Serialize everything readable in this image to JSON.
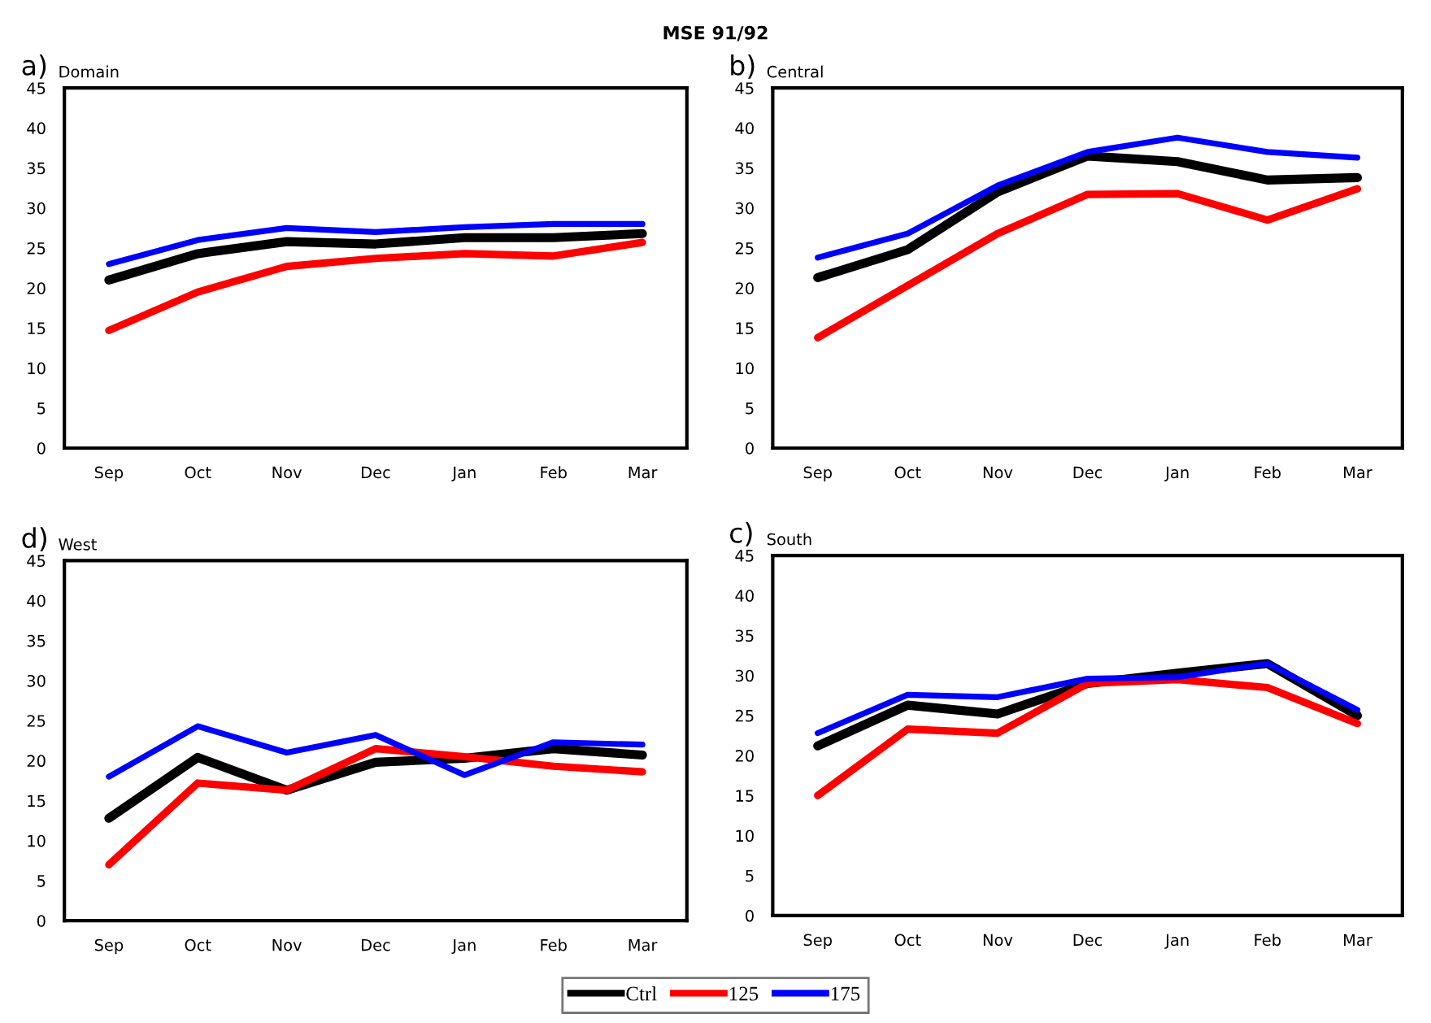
{
  "chart_data": [
    {
      "type": "line",
      "title": "a)",
      "subtitle": "Domain",
      "annotations": [
        "MSE 91/92"
      ],
      "categories": [
        "Sep",
        "Oct",
        "Nov",
        "Dec",
        "Jan",
        "Feb",
        "Mar"
      ],
      "ylim": [
        0,
        45
      ],
      "yticks": [
        0,
        5,
        10,
        15,
        20,
        25,
        30,
        35,
        40,
        45
      ],
      "legend": "bottom",
      "series": [
        {
          "name": "Ctrl",
          "color": "#000000",
          "values": [
            21,
            24.3,
            25.8,
            25.5,
            26.3,
            26.3,
            26.8
          ]
        },
        {
          "name": "125",
          "color": "#ff0000",
          "values": [
            14.7,
            19.5,
            22.7,
            23.7,
            24.3,
            24,
            25.7
          ]
        },
        {
          "name": "175",
          "color": "#0000ff",
          "values": [
            23,
            26,
            27.5,
            27,
            27.6,
            28,
            28
          ]
        }
      ]
    },
    {
      "type": "line",
      "title": "b)",
      "subtitle": "Central",
      "categories": [
        "Sep",
        "Oct",
        "Nov",
        "Dec",
        "Jan",
        "Feb",
        "Mar"
      ],
      "ylim": [
        0,
        45
      ],
      "yticks": [
        0,
        5,
        10,
        15,
        20,
        25,
        30,
        35,
        40,
        45
      ],
      "series": [
        {
          "color": "#000000",
          "values": [
            21.3,
            24.8,
            32,
            36.5,
            35.8,
            33.5,
            33.8
          ]
        },
        {
          "color": "#ff0000",
          "values": [
            13.8,
            20.3,
            26.8,
            31.7,
            31.8,
            28.5,
            32.4
          ]
        },
        {
          "color": "#0000ff",
          "values": [
            23.8,
            26.8,
            32.8,
            37,
            38.8,
            37,
            36.3
          ]
        }
      ]
    },
    {
      "type": "line",
      "title": "d)",
      "subtitle": "West",
      "categories": [
        "Sep",
        "Oct",
        "Nov",
        "Dec",
        "Jan",
        "Feb",
        "Mar"
      ],
      "ylim": [
        0,
        45
      ],
      "yticks": [
        0,
        5,
        10,
        15,
        20,
        25,
        30,
        35,
        40,
        45
      ],
      "series": [
        {
          "color": "#000000",
          "values": [
            12.8,
            20.4,
            16.3,
            19.8,
            20.3,
            21.5,
            20.7
          ]
        },
        {
          "color": "#ff0000",
          "values": [
            7,
            17.2,
            16.3,
            21.5,
            20.5,
            19.3,
            18.6
          ]
        },
        {
          "color": "#0000ff",
          "values": [
            18,
            24.3,
            21,
            23.2,
            18.2,
            22.3,
            22
          ]
        }
      ]
    },
    {
      "type": "line",
      "title": "c)",
      "subtitle": "South",
      "categories": [
        "Sep",
        "Oct",
        "Nov",
        "Dec",
        "Jan",
        "Feb",
        "Mar"
      ],
      "ylim": [
        0,
        45
      ],
      "yticks": [
        0,
        5,
        10,
        15,
        20,
        25,
        30,
        35,
        40,
        45
      ],
      "series": [
        {
          "color": "#000000",
          "values": [
            21.2,
            26.3,
            25.2,
            29,
            30.3,
            31.5,
            25
          ]
        },
        {
          "color": "#ff0000",
          "values": [
            15,
            23.3,
            22.8,
            29,
            29.5,
            28.5,
            24
          ]
        },
        {
          "color": "#0000ff",
          "values": [
            22.8,
            27.6,
            27.3,
            29.6,
            29.8,
            31.5,
            25.7
          ]
        }
      ]
    }
  ]
}
